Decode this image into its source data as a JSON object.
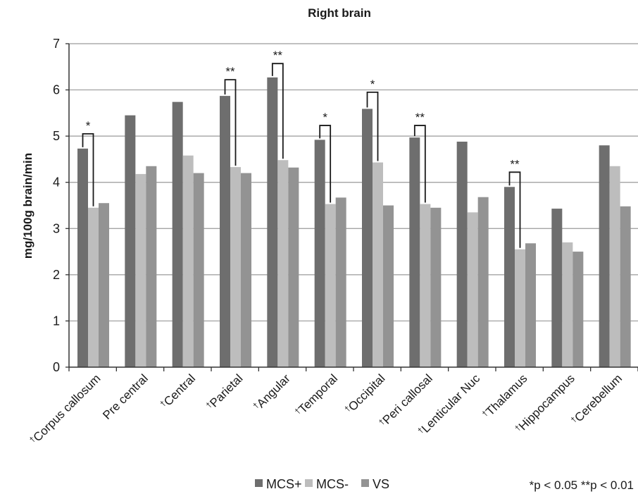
{
  "chart_data": {
    "type": "bar",
    "title": "Right brain",
    "ylabel": "mg/100g brain/min",
    "xlabel": "",
    "ylim": [
      0,
      7
    ],
    "yticks": [
      "0",
      "1",
      "2",
      "3",
      "4",
      "5",
      "6",
      "7"
    ],
    "grid": true,
    "legend_position": "bottom",
    "dagger_symbol": "†",
    "categories": [
      "Corpus callosum",
      "Pre central",
      "Central",
      "Parietal",
      "Angular",
      "Temporal",
      "Occipital",
      "Peri callosal",
      "Lenticular Nuc",
      "Thalamus",
      "Hippocampus",
      "Cerebellum"
    ],
    "category_dagger": [
      true,
      false,
      true,
      true,
      true,
      true,
      true,
      true,
      true,
      true,
      true,
      true
    ],
    "series": [
      {
        "name": "MCS+",
        "color": "#6e6e6e",
        "values": [
          4.73,
          5.45,
          5.74,
          5.87,
          6.27,
          4.92,
          5.59,
          4.97,
          4.88,
          3.9,
          3.43,
          4.8
        ]
      },
      {
        "name": "MCS-",
        "color": "#bdbdbd",
        "values": [
          3.45,
          4.18,
          4.58,
          4.33,
          4.48,
          3.53,
          4.43,
          3.53,
          3.35,
          2.55,
          2.7,
          4.35
        ]
      },
      {
        "name": "VS",
        "color": "#939393",
        "values": [
          3.55,
          4.35,
          4.2,
          4.2,
          4.32,
          3.67,
          3.5,
          3.45,
          3.68,
          2.68,
          2.5,
          3.48
        ]
      }
    ],
    "significance": [
      {
        "category_index": 0,
        "label": "*",
        "top": 5.05
      },
      {
        "category_index": 3,
        "label": "**",
        "top": 6.22
      },
      {
        "category_index": 4,
        "label": "**",
        "top": 6.57
      },
      {
        "category_index": 5,
        "label": "*",
        "top": 5.23
      },
      {
        "category_index": 6,
        "label": "*",
        "top": 5.95
      },
      {
        "category_index": 7,
        "label": "**",
        "top": 5.23
      },
      {
        "category_index": 9,
        "label": "**",
        "top": 4.22
      }
    ],
    "footnote": "*p < 0.05 **p < 0.01"
  }
}
